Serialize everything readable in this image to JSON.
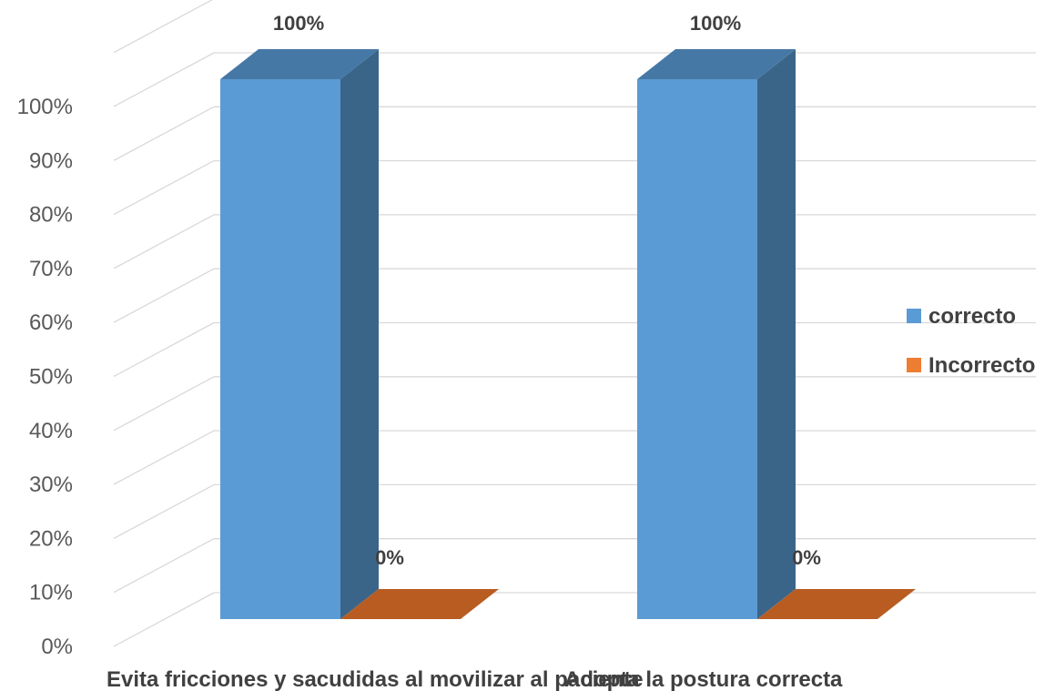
{
  "chart_data": {
    "type": "bar",
    "style": "3d-clustered-column",
    "categories": [
      "Evita fricciones y sacudidas al movilizar al paciente",
      "Adopta la postura correcta"
    ],
    "series": [
      {
        "name": "correcto",
        "values": [
          100,
          100
        ],
        "color": "#5B9BD5",
        "side_color": "#3A6589",
        "top_color": "#4678A6"
      },
      {
        "name": "Incorrecto",
        "values": [
          0,
          0
        ],
        "color": "#ED7D31",
        "side_color": "#A85A25",
        "top_color": "#B85C22"
      }
    ],
    "data_labels": [
      [
        "100%",
        "100%"
      ],
      [
        "0%",
        "0%"
      ]
    ],
    "y_ticks": [
      "0%",
      "10%",
      "20%",
      "30%",
      "40%",
      "50%",
      "60%",
      "70%",
      "80%",
      "90%",
      "100%"
    ],
    "ylim": [
      0,
      110
    ],
    "grid": true,
    "legend_position": "right"
  }
}
